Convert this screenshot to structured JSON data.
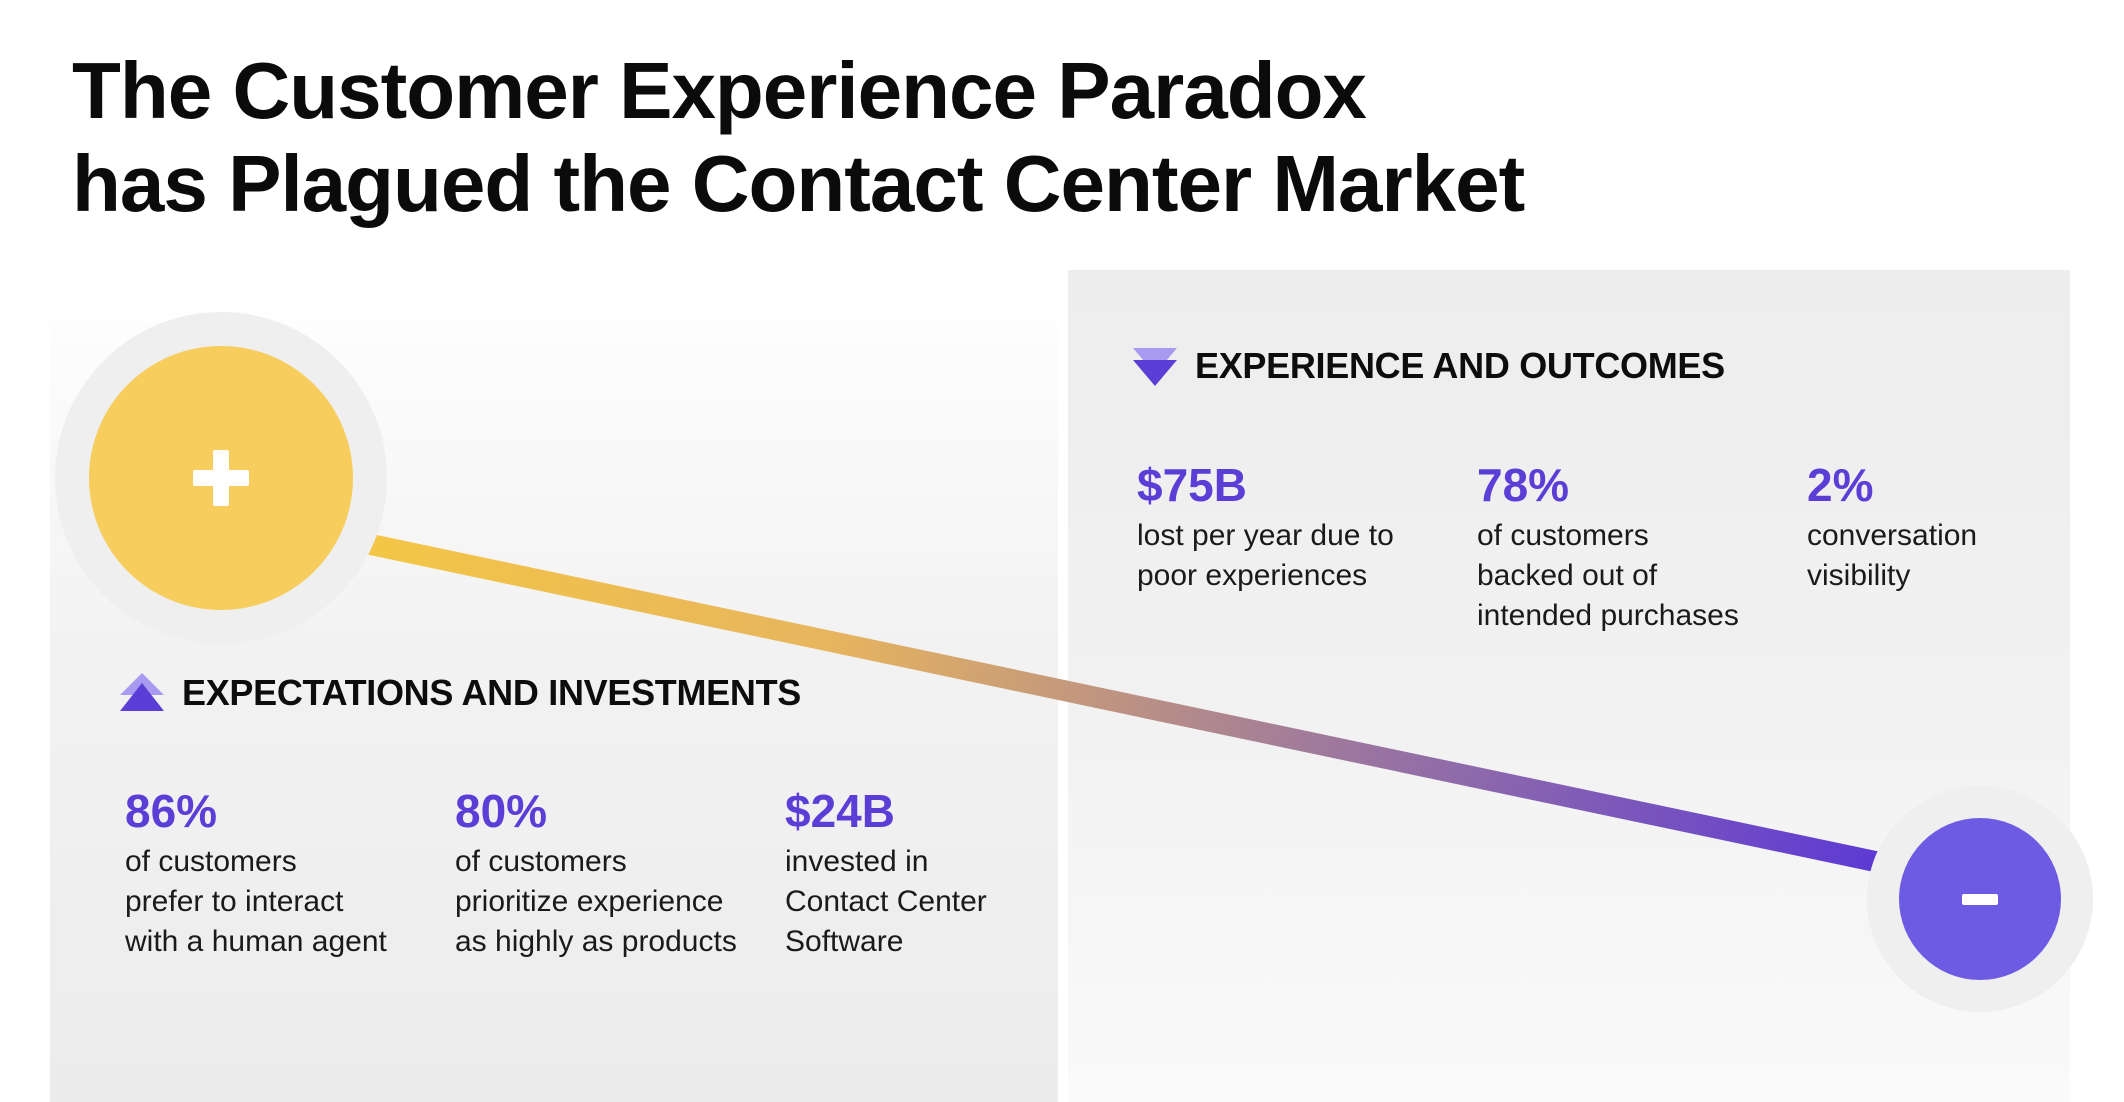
{
  "title": {
    "line1": "The Customer Experience Paradox",
    "line2": "has Plagued the Contact Center Market"
  },
  "colors": {
    "accent_purple": "#5b3ed6",
    "plus_yellow": "#f7cd5e",
    "minus_purple": "#6e5be3",
    "connector_start": "#f4c646",
    "connector_end": "#5a36d8"
  },
  "expectations": {
    "icon": "chevrons-up-icon",
    "heading": "EXPECTATIONS  AND INVESTMENTS",
    "stats": [
      {
        "value": "86%",
        "description": "of customers\nprefer to interact\nwith a human agent"
      },
      {
        "value": "80%",
        "description": "of customers\nprioritize experience\nas highly as products"
      },
      {
        "value": "$24B",
        "description": "invested in\nContact Center\nSoftware"
      }
    ]
  },
  "outcomes": {
    "icon": "chevrons-down-icon",
    "heading": "EXPERIENCE AND OUTCOMES",
    "stats": [
      {
        "value": "$75B",
        "description": "lost per year due to\npoor experiences"
      },
      {
        "value": "78%",
        "description": "of customers\nbacked out of\nintended purchases"
      },
      {
        "value": "2%",
        "description": "conversation\nvisibility"
      }
    ]
  }
}
